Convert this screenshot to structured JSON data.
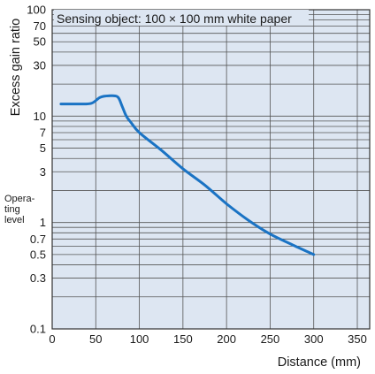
{
  "chart_data": {
    "type": "line",
    "title": "Sensing object: 100 × 100 mm white paper",
    "xlabel": "Distance (mm)",
    "ylabel": "Excess gain ratio",
    "x_scale": "linear",
    "y_scale": "log",
    "xlim": [
      0,
      350
    ],
    "ylim": [
      0.1,
      100
    ],
    "x_ticks": [
      0,
      50,
      100,
      150,
      200,
      250,
      300,
      350
    ],
    "y_tick_labels": [
      {
        "value": 100,
        "label": "100"
      },
      {
        "value": 70,
        "label": "70"
      },
      {
        "value": 50,
        "label": "50"
      },
      {
        "value": 30,
        "label": "30"
      },
      {
        "value": 10,
        "label": "10"
      },
      {
        "value": 7,
        "label": "7"
      },
      {
        "value": 5,
        "label": "5"
      },
      {
        "value": 3,
        "label": "3"
      },
      {
        "value": 1,
        "label": "1"
      },
      {
        "value": 0.7,
        "label": "0.7"
      },
      {
        "value": 0.5,
        "label": "0.5"
      },
      {
        "value": 0.3,
        "label": "0.3"
      },
      {
        "value": 0.1,
        "label": "0.1"
      }
    ],
    "y_gridlines": [
      0.1,
      0.2,
      0.3,
      0.4,
      0.5,
      0.6,
      0.7,
      0.8,
      0.9,
      1,
      2,
      3,
      4,
      5,
      6,
      7,
      8,
      9,
      10,
      20,
      30,
      40,
      50,
      60,
      70,
      80,
      90,
      100
    ],
    "operating_level_label": [
      "Opera-",
      "ting",
      "level"
    ],
    "grid": true,
    "series": [
      {
        "x": [
          10,
          30,
          45,
          55,
          65,
          75,
          80,
          85,
          90,
          100,
          125,
          150,
          175,
          200,
          225,
          250,
          275,
          300
        ],
        "values": [
          13,
          13,
          13.2,
          15,
          15.5,
          15.2,
          12.5,
          10,
          8.8,
          7.0,
          4.8,
          3.2,
          2.25,
          1.5,
          1.05,
          0.78,
          0.62,
          0.5
        ]
      }
    ]
  },
  "colors": {
    "plot_background": "#dde6f2",
    "grid": "#555555",
    "frame": "#333333",
    "line": "#1a73c4"
  }
}
